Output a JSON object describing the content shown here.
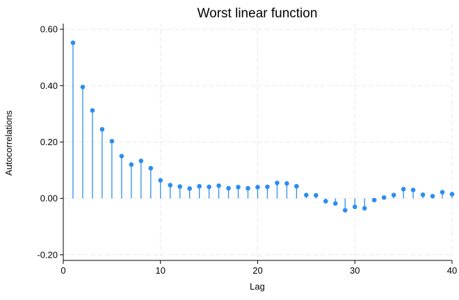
{
  "chart_data": {
    "type": "stem",
    "title": "Worst linear function",
    "xlabel": "Lag",
    "ylabel": "Autocorrelations",
    "xlim": [
      0,
      40
    ],
    "ylim": [
      -0.22,
      0.62
    ],
    "xticks": [
      0,
      10,
      20,
      30,
      40
    ],
    "xtick_labels": [
      "0",
      "10",
      "20",
      "30",
      "40"
    ],
    "yticks": [
      -0.2,
      0.0,
      0.2,
      0.4,
      0.6
    ],
    "ytick_labels": [
      "-0.20",
      "0.00",
      "0.20",
      "0.40",
      "0.60"
    ],
    "grid": true,
    "color": "#2a8ef0",
    "x": [
      1,
      2,
      3,
      4,
      5,
      6,
      7,
      8,
      9,
      10,
      11,
      12,
      13,
      14,
      15,
      16,
      17,
      18,
      19,
      20,
      21,
      22,
      23,
      24,
      25,
      26,
      27,
      28,
      29,
      30,
      31,
      32,
      33,
      34,
      35,
      36,
      37,
      38,
      39,
      40
    ],
    "values": [
      0.552,
      0.395,
      0.312,
      0.245,
      0.203,
      0.15,
      0.12,
      0.133,
      0.107,
      0.064,
      0.047,
      0.042,
      0.035,
      0.043,
      0.041,
      0.045,
      0.036,
      0.04,
      0.036,
      0.04,
      0.041,
      0.055,
      0.053,
      0.043,
      0.012,
      0.011,
      -0.01,
      -0.018,
      -0.042,
      -0.03,
      -0.035,
      -0.006,
      0.003,
      0.012,
      0.033,
      0.03,
      0.013,
      0.008,
      0.022,
      0.015
    ]
  }
}
